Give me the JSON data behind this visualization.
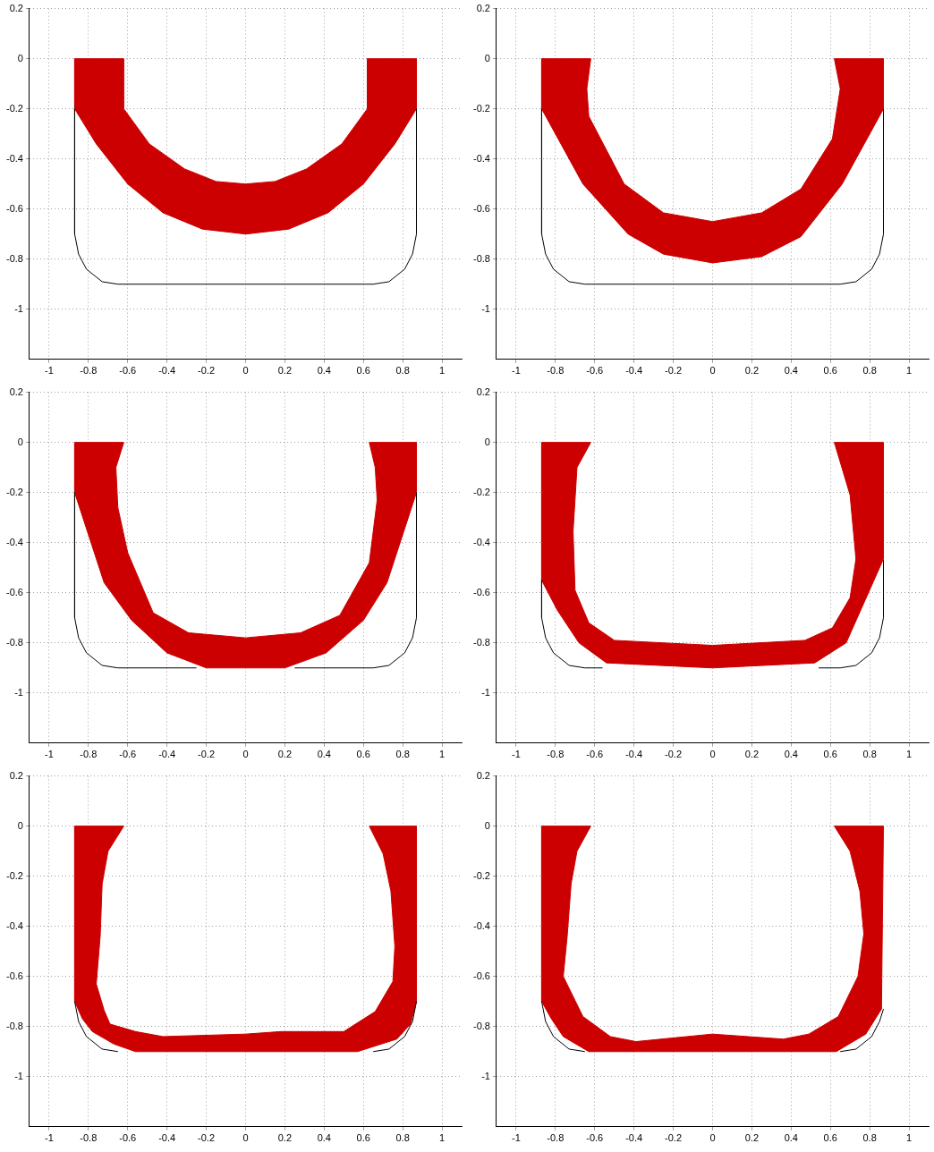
{
  "chart_data": [
    {
      "type": "area",
      "xlim": [
        -1.1,
        1.1
      ],
      "xticks": [
        -1,
        -0.8,
        -0.6,
        -0.4,
        -0.2,
        0,
        0.2,
        0.4,
        0.6,
        0.8,
        1
      ],
      "ylim": [
        -1.2,
        0.2
      ],
      "yticks": [
        0.2,
        0,
        -0.2,
        -0.4,
        -0.6,
        -0.8,
        -1
      ],
      "grid": true,
      "series": [
        {
          "type": "line",
          "color": "#000000",
          "x": [
            -0.87,
            -0.87,
            -0.85,
            -0.81,
            -0.73,
            -0.65,
            0.65,
            0.73,
            0.81,
            0.85,
            0.87,
            0.87
          ],
          "values": [
            -0.2,
            -0.7,
            -0.78,
            -0.84,
            -0.89,
            -0.9,
            -0.9,
            -0.89,
            -0.84,
            -0.78,
            -0.7,
            -0.2
          ]
        },
        {
          "type": "area",
          "color": "#cc0000",
          "x": [
            -0.87,
            -0.87,
            -0.76,
            -0.6,
            -0.42,
            -0.22,
            0,
            0.22,
            0.42,
            0.6,
            0.76,
            0.87,
            0.87,
            0.62,
            0.62,
            0.49,
            0.31,
            0.15,
            0,
            -0.15,
            -0.31,
            -0.49,
            -0.62,
            -0.62,
            -0.87
          ],
          "values": [
            0,
            -0.2,
            -0.34,
            -0.5,
            -0.615,
            -0.68,
            -0.7,
            -0.68,
            -0.615,
            -0.5,
            -0.34,
            -0.2,
            0,
            0,
            -0.2,
            -0.34,
            -0.44,
            -0.49,
            -0.5,
            -0.49,
            -0.44,
            -0.34,
            -0.2,
            0,
            0
          ]
        }
      ]
    },
    {
      "type": "area",
      "xlim": [
        -1.1,
        1.1
      ],
      "xticks": [
        -1,
        -0.8,
        -0.6,
        -0.4,
        -0.2,
        0,
        0.2,
        0.4,
        0.6,
        0.8,
        1
      ],
      "ylim": [
        -1.2,
        0.2
      ],
      "yticks": [
        0.2,
        0,
        -0.2,
        -0.4,
        -0.6,
        -0.8,
        -1
      ],
      "grid": true,
      "series": [
        {
          "type": "line",
          "color": "#000000",
          "x": [
            -0.87,
            -0.87,
            -0.85,
            -0.81,
            -0.73,
            -0.65,
            0.65,
            0.73,
            0.81,
            0.85,
            0.87,
            0.87
          ],
          "values": [
            -0.2,
            -0.7,
            -0.78,
            -0.84,
            -0.89,
            -0.9,
            -0.9,
            -0.89,
            -0.84,
            -0.78,
            -0.7,
            -0.2
          ]
        },
        {
          "type": "area",
          "color": "#cc0000",
          "x": [
            -0.87,
            -0.87,
            -0.66,
            -0.43,
            -0.25,
            0,
            0.25,
            0.45,
            0.66,
            0.87,
            0.87,
            0.62,
            0.65,
            0.61,
            0.45,
            0.25,
            0,
            -0.25,
            -0.45,
            -0.63,
            -0.64,
            -0.62,
            -0.87
          ],
          "values": [
            0,
            -0.2,
            -0.5,
            -0.7,
            -0.78,
            -0.815,
            -0.79,
            -0.71,
            -0.5,
            -0.2,
            0,
            0,
            -0.12,
            -0.32,
            -0.52,
            -0.615,
            -0.65,
            -0.615,
            -0.5,
            -0.23,
            -0.12,
            0,
            0
          ]
        }
      ]
    },
    {
      "type": "area",
      "xlim": [
        -1.1,
        1.1
      ],
      "xticks": [
        -1,
        -0.8,
        -0.6,
        -0.4,
        -0.2,
        0,
        0.2,
        0.4,
        0.6,
        0.8,
        1
      ],
      "ylim": [
        -1.2,
        0.2
      ],
      "yticks": [
        0.2,
        0,
        -0.2,
        -0.4,
        -0.6,
        -0.8,
        -1
      ],
      "grid": true,
      "series": [
        {
          "type": "line",
          "color": "#000000",
          "x": [
            -0.87,
            -0.87,
            -0.85,
            -0.81,
            -0.73,
            -0.65,
            -0.25,
            0,
            0.25,
            0.65,
            0.73,
            0.81,
            0.85,
            0.87,
            0.87
          ],
          "values": [
            -0.2,
            -0.7,
            -0.78,
            -0.84,
            -0.89,
            -0.9,
            -0.9,
            null,
            -0.9,
            -0.9,
            -0.89,
            -0.84,
            -0.78,
            -0.7,
            -0.2
          ]
        },
        {
          "type": "area",
          "color": "#cc0000",
          "x": [
            -0.87,
            -0.87,
            -0.72,
            -0.58,
            -0.4,
            -0.2,
            0,
            0.2,
            0.41,
            0.6,
            0.72,
            0.87,
            0.87,
            0.63,
            0.66,
            0.67,
            0.63,
            0.48,
            0.28,
            0,
            -0.29,
            -0.47,
            -0.6,
            -0.65,
            -0.66,
            -0.62,
            -0.87
          ],
          "values": [
            0,
            -0.2,
            -0.56,
            -0.71,
            -0.84,
            -0.9,
            -0.9,
            -0.9,
            -0.84,
            -0.71,
            -0.56,
            -0.2,
            0,
            0,
            -0.1,
            -0.23,
            -0.48,
            -0.69,
            -0.76,
            -0.78,
            -0.76,
            -0.68,
            -0.44,
            -0.26,
            -0.1,
            0,
            0
          ]
        }
      ]
    },
    {
      "type": "area",
      "xlim": [
        -1.1,
        1.1
      ],
      "xticks": [
        -1,
        -0.8,
        -0.6,
        -0.4,
        -0.2,
        0,
        0.2,
        0.4,
        0.6,
        0.8,
        1
      ],
      "ylim": [
        -1.2,
        0.2
      ],
      "yticks": [
        0.2,
        0,
        -0.2,
        -0.4,
        -0.6,
        -0.8,
        -1
      ],
      "grid": true,
      "series": [
        {
          "type": "line",
          "color": "#000000",
          "x": [
            -0.87,
            -0.87,
            -0.85,
            -0.81,
            -0.73,
            -0.65,
            -0.56,
            0,
            0.54,
            0.65,
            0.73,
            0.81,
            0.85,
            0.87,
            0.87
          ],
          "values": [
            -0.55,
            -0.7,
            -0.78,
            -0.84,
            -0.89,
            -0.9,
            -0.9,
            null,
            -0.9,
            -0.9,
            -0.89,
            -0.84,
            -0.78,
            -0.7,
            -0.47
          ]
        },
        {
          "type": "area",
          "color": "#cc0000",
          "x": [
            -0.87,
            -0.87,
            -0.79,
            -0.68,
            -0.54,
            0,
            0.52,
            0.68,
            0.87,
            0.87,
            0.62,
            0.7,
            0.73,
            0.7,
            0.61,
            0.47,
            0,
            -0.5,
            -0.63,
            -0.7,
            -0.71,
            -0.69,
            -0.62,
            -0.87
          ],
          "values": [
            0,
            -0.55,
            -0.67,
            -0.8,
            -0.88,
            -0.9,
            -0.88,
            -0.8,
            -0.465,
            0,
            0,
            -0.21,
            -0.465,
            -0.62,
            -0.74,
            -0.79,
            -0.81,
            -0.79,
            -0.72,
            -0.59,
            -0.355,
            -0.1,
            0,
            0
          ]
        }
      ]
    },
    {
      "type": "area",
      "xlim": [
        -1.1,
        1.1
      ],
      "xticks": [
        -1,
        -0.8,
        -0.6,
        -0.4,
        -0.2,
        0,
        0.2,
        0.4,
        0.6,
        0.8,
        1
      ],
      "ylim": [
        -1.2,
        0.2
      ],
      "yticks": [
        0.2,
        0,
        -0.2,
        -0.4,
        -0.6,
        -0.8,
        -1
      ],
      "grid": true,
      "series": [
        {
          "type": "line",
          "color": "#000000",
          "x": [
            -0.87,
            -0.85,
            -0.81,
            -0.73,
            -0.65,
            0,
            0.65,
            0.73,
            0.81,
            0.85,
            0.87
          ],
          "values": [
            -0.7,
            -0.78,
            -0.84,
            -0.89,
            -0.9,
            null,
            -0.9,
            -0.89,
            -0.84,
            -0.78,
            -0.7
          ]
        },
        {
          "type": "area",
          "color": "#cc0000",
          "x": [
            -0.87,
            -0.87,
            -0.83,
            -0.78,
            -0.67,
            -0.56,
            0.57,
            0.77,
            0.84,
            0.87,
            0.87,
            0.63,
            0.7,
            0.74,
            0.76,
            0.75,
            0.66,
            0.5,
            0.35,
            0.18,
            0,
            -0.42,
            -0.56,
            -0.69,
            -0.72,
            -0.76,
            -0.74,
            -0.73,
            -0.7,
            -0.62,
            -0.87
          ],
          "values": [
            0,
            -0.7,
            -0.77,
            -0.82,
            -0.87,
            -0.9,
            -0.9,
            -0.85,
            -0.79,
            -0.7,
            0,
            0,
            -0.11,
            -0.26,
            -0.48,
            -0.62,
            -0.74,
            -0.82,
            -0.82,
            -0.82,
            -0.83,
            -0.84,
            -0.82,
            -0.79,
            -0.735,
            -0.63,
            -0.44,
            -0.23,
            -0.1,
            0,
            0
          ]
        }
      ]
    },
    {
      "type": "area",
      "xlim": [
        -1.1,
        1.1
      ],
      "xticks": [
        -1,
        -0.8,
        -0.6,
        -0.4,
        -0.2,
        0,
        0.2,
        0.4,
        0.6,
        0.8,
        1
      ],
      "ylim": [
        -1.2,
        0.2
      ],
      "yticks": [
        0.2,
        0,
        -0.2,
        -0.4,
        -0.6,
        -0.8,
        -1
      ],
      "grid": true,
      "series": [
        {
          "type": "line",
          "color": "#000000",
          "x": [
            -0.87,
            -0.85,
            -0.81,
            -0.73,
            -0.65,
            0,
            0.65,
            0.73,
            0.81,
            0.85,
            0.87
          ],
          "values": [
            -0.7,
            -0.78,
            -0.84,
            -0.89,
            -0.9,
            null,
            -0.9,
            -0.89,
            -0.84,
            -0.78,
            -0.73
          ]
        },
        {
          "type": "area",
          "color": "#cc0000",
          "x": [
            -0.87,
            -0.87,
            -0.82,
            -0.76,
            -0.63,
            0.63,
            0.78,
            0.86,
            0.87,
            0.62,
            0.7,
            0.75,
            0.77,
            0.74,
            0.64,
            0.49,
            0.36,
            0,
            -0.39,
            -0.52,
            -0.66,
            -0.76,
            -0.74,
            -0.72,
            -0.69,
            -0.62,
            -0.87
          ],
          "values": [
            0,
            -0.7,
            -0.77,
            -0.84,
            -0.9,
            -0.9,
            -0.83,
            -0.73,
            0,
            0,
            -0.1,
            -0.26,
            -0.43,
            -0.6,
            -0.76,
            -0.83,
            -0.85,
            -0.83,
            -0.86,
            -0.84,
            -0.76,
            -0.6,
            -0.44,
            -0.23,
            -0.1,
            0,
            0
          ]
        }
      ]
    }
  ]
}
